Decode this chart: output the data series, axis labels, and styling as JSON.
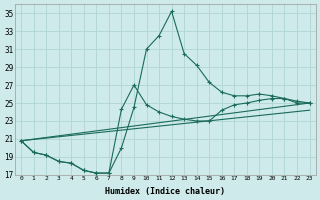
{
  "xlabel": "Humidex (Indice chaleur)",
  "bg_color": "#ceeaea",
  "grid_color": "#b0d4d4",
  "line_color": "#1a6b5a",
  "xlim": [
    -0.5,
    23.5
  ],
  "ylim": [
    17,
    36
  ],
  "xticks": [
    0,
    1,
    2,
    3,
    4,
    5,
    6,
    7,
    8,
    9,
    10,
    11,
    12,
    13,
    14,
    15,
    16,
    17,
    18,
    19,
    20,
    21,
    22,
    23
  ],
  "yticks": [
    17,
    19,
    21,
    23,
    25,
    27,
    29,
    31,
    33,
    35
  ],
  "series_big_peak": {
    "x": [
      0,
      1,
      2,
      3,
      4,
      5,
      6,
      7,
      8,
      9,
      10,
      11,
      12,
      13,
      14,
      15,
      16,
      17,
      18,
      19,
      20,
      21,
      22,
      23
    ],
    "y": [
      20.8,
      19.5,
      19.2,
      18.5,
      18.3,
      17.5,
      17.2,
      17.2,
      20.0,
      24.5,
      31.0,
      32.5,
      35.2,
      30.5,
      29.2,
      27.3,
      26.2,
      25.8,
      25.8,
      26.0,
      25.8,
      25.5,
      25.0,
      25.0
    ]
  },
  "series_small_peak": {
    "x": [
      0,
      1,
      2,
      3,
      4,
      5,
      6,
      7,
      8,
      9,
      10,
      11,
      12,
      13,
      14,
      15,
      16,
      17,
      18,
      19,
      20,
      21,
      22,
      23
    ],
    "y": [
      20.8,
      19.5,
      19.2,
      18.5,
      18.3,
      17.5,
      17.2,
      17.2,
      24.3,
      27.0,
      24.8,
      24.0,
      23.5,
      23.2,
      23.0,
      23.0,
      24.2,
      24.8,
      25.0,
      25.3,
      25.5,
      25.5,
      25.2,
      25.0
    ]
  },
  "series_line1": {
    "x": [
      0,
      23
    ],
    "y": [
      20.8,
      25.0
    ]
  },
  "series_line2": {
    "x": [
      0,
      23
    ],
    "y": [
      20.8,
      24.2
    ]
  }
}
